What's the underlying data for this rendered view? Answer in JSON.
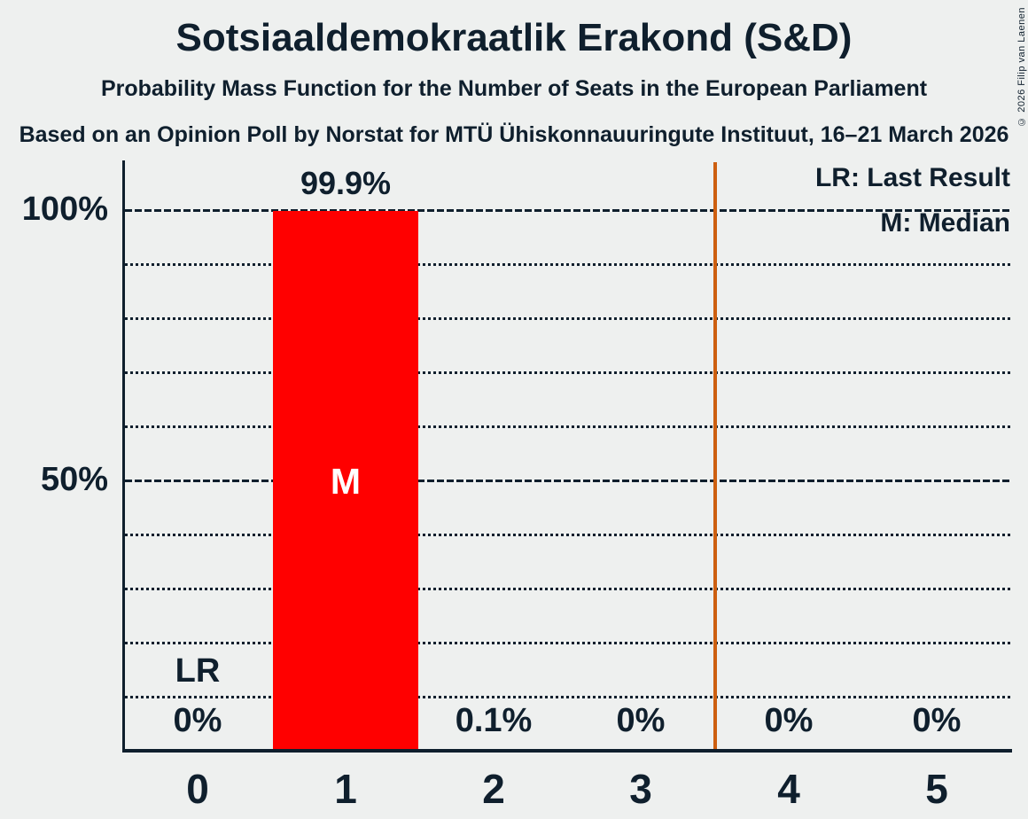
{
  "header": {
    "title": "Sotsiaaldemokraatlik Erakond (S&D)",
    "subtitle": "Probability Mass Function for the Number of Seats in the European Parliament",
    "source": "Based on an Opinion Poll by Norstat for MTÜ Ühiskonnauuringute Instituut, 16–21 March 2026"
  },
  "copyright": "© 2026 Filip van Laenen",
  "legend": {
    "last_result": "LR: Last Result",
    "median": "M: Median",
    "position": "top-right"
  },
  "y_axis": {
    "tick_100": "100%",
    "tick_50": "50%"
  },
  "annotations": {
    "last_result_label": "LR",
    "median_label": "M"
  },
  "colors": {
    "background": "#eef0ef",
    "ink": "#0f1f2d",
    "bar": "#ff0000",
    "vline": "#cd5f10",
    "median_text": "#ffffff"
  },
  "chart_data": {
    "type": "bar",
    "title": "Probability Mass Function for the Number of Seats in the European Parliament",
    "categories": [
      "0",
      "1",
      "2",
      "3",
      "4",
      "5"
    ],
    "values": [
      0,
      99.9,
      0.1,
      0,
      0,
      0
    ],
    "value_labels": [
      "0%",
      "99.9%",
      "0.1%",
      "0%",
      "0%",
      "0%"
    ],
    "ylim": [
      0,
      100
    ],
    "y_tick_interval_pct": 10,
    "grid": "dotted every 10%, solid major lines at 50% and 100%",
    "legend_position": "top-right",
    "last_result_seat": 0,
    "median_seat": 1,
    "vline_x": 3.5
  }
}
